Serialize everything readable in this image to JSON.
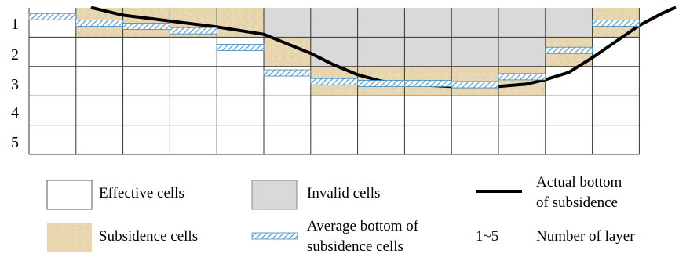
{
  "grid": {
    "rows": 5,
    "cols": 13,
    "row_labels": [
      "1",
      "2",
      "3",
      "4",
      "5"
    ],
    "cells": {
      "subsidence": [
        [
          0,
          1
        ],
        [
          0,
          2
        ],
        [
          0,
          3
        ],
        [
          0,
          4
        ],
        [
          0,
          12
        ],
        [
          1,
          5
        ],
        [
          1,
          11
        ],
        [
          2,
          6
        ],
        [
          2,
          7
        ],
        [
          2,
          8
        ],
        [
          2,
          9
        ],
        [
          2,
          10
        ]
      ],
      "invalid": [
        [
          0,
          5
        ],
        [
          0,
          6
        ],
        [
          0,
          7
        ],
        [
          0,
          8
        ],
        [
          0,
          9
        ],
        [
          0,
          10
        ],
        [
          0,
          11
        ],
        [
          1,
          6
        ],
        [
          1,
          7
        ],
        [
          1,
          8
        ],
        [
          1,
          9
        ],
        [
          1,
          10
        ]
      ]
    }
  },
  "average_bottoms": [
    {
      "col": 1,
      "depth": 0.3
    },
    {
      "col": 2,
      "depth": 0.52
    },
    {
      "col": 3,
      "depth": 0.63
    },
    {
      "col": 4,
      "depth": 0.78
    },
    {
      "col": 5,
      "depth": 1.35
    },
    {
      "col": 6,
      "depth": 2.22
    },
    {
      "col": 7,
      "depth": 2.52
    },
    {
      "col": 8,
      "depth": 2.58
    },
    {
      "col": 9,
      "depth": 2.58
    },
    {
      "col": 10,
      "depth": 2.62
    },
    {
      "col": 11,
      "depth": 2.35
    },
    {
      "col": 12,
      "depth": 1.45
    },
    {
      "col": 13,
      "depth": 0.52
    }
  ],
  "actual_bottom_curve": [
    [
      1.35,
      0.0
    ],
    [
      2.0,
      0.25
    ],
    [
      3.0,
      0.45
    ],
    [
      4.0,
      0.65
    ],
    [
      5.0,
      0.9
    ],
    [
      6.0,
      1.55
    ],
    [
      6.5,
      1.95
    ],
    [
      7.0,
      2.28
    ],
    [
      7.5,
      2.5
    ],
    [
      8.0,
      2.6
    ],
    [
      9.0,
      2.68
    ],
    [
      10.0,
      2.68
    ],
    [
      10.6,
      2.6
    ],
    [
      11.0,
      2.45
    ],
    [
      11.5,
      2.2
    ],
    [
      12.0,
      1.7
    ],
    [
      12.5,
      1.15
    ],
    [
      13.0,
      0.6
    ],
    [
      13.5,
      0.18
    ],
    [
      13.75,
      0.0
    ]
  ],
  "colors": {
    "grid_line": "#333333",
    "subsidence_fill": "#e8d6b0",
    "invalid_fill": "#d9d9d9",
    "effective_fill": "#ffffff",
    "hatch_stroke": "#5aa0d0",
    "curve": "#000000"
  },
  "legend": {
    "effective": "Effective cells",
    "invalid": "Invalid cells",
    "actual_line1": "Actual bottom",
    "actual_line2": "of subsidence",
    "subsidence": "Subsidence cells",
    "average_line1": "Average bottom of",
    "average_line2": "subsidence cells",
    "range": "1~5",
    "layers": "Number of layer"
  }
}
